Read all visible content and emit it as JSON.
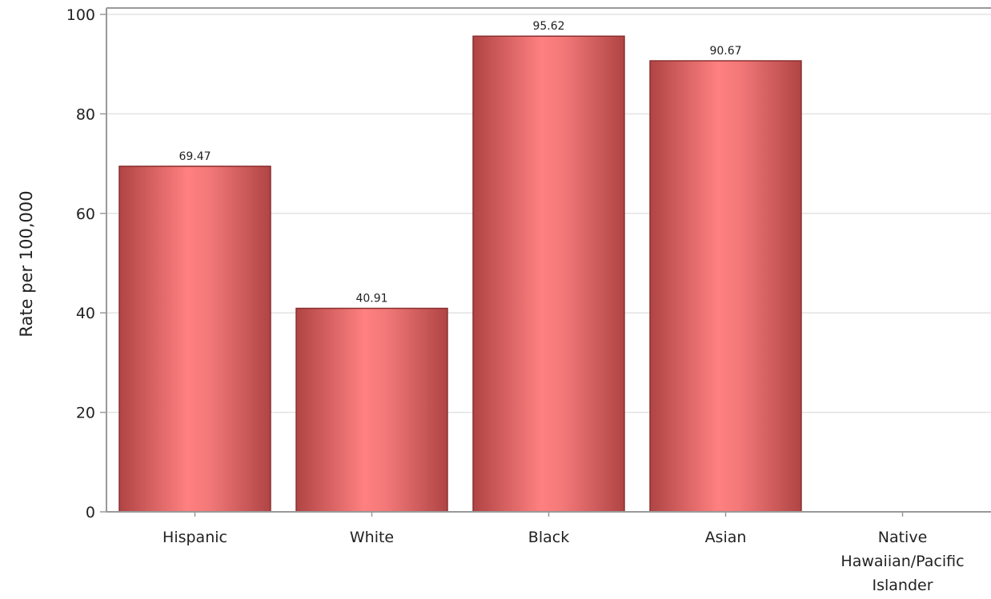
{
  "chart_data": {
    "type": "bar",
    "title": "",
    "xlabel": "",
    "ylabel": "Rate per 100,000",
    "ylim": [
      0,
      100
    ],
    "yticks": [
      0,
      20,
      40,
      60,
      80,
      100
    ],
    "grid": "horizontal",
    "legend": "none",
    "categories": [
      [
        "Hispanic"
      ],
      [
        "White"
      ],
      [
        "Black"
      ],
      [
        "Asian"
      ],
      [
        "Native",
        "Hawaiian/Pacific",
        "Islander"
      ]
    ],
    "values": [
      69.47,
      40.91,
      95.62,
      90.67,
      null
    ],
    "value_labels": [
      "69.47",
      "40.91",
      "95.62",
      "90.67",
      ""
    ],
    "colors": {
      "bar_light": "#ff8080",
      "bar_dark": "#b04444",
      "bar_edge": "#8a2f2f",
      "grid": "#e3e3e3",
      "axis": "#999999",
      "text": "#222222"
    }
  }
}
